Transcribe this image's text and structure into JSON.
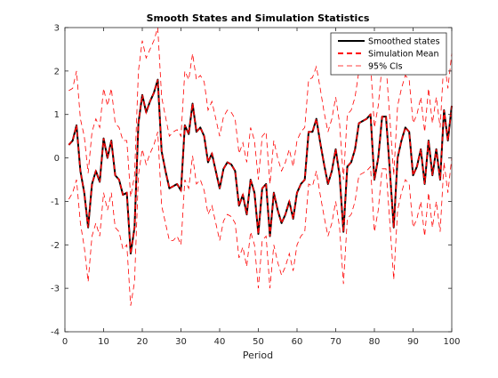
{
  "chart_data": {
    "type": "line",
    "title": "Smooth States and Simulation Statistics",
    "xlabel": "Period",
    "ylabel": "",
    "xlim": [
      0,
      100
    ],
    "ylim": [
      -4,
      3
    ],
    "xticks": [
      0,
      10,
      20,
      30,
      40,
      50,
      60,
      70,
      80,
      90,
      100
    ],
    "yticks": [
      -4,
      -3,
      -2,
      -1,
      0,
      1,
      2,
      3
    ],
    "grid": false,
    "legend": "top-right",
    "colors": {
      "smoothed": "#000000",
      "mean": "#ff0000",
      "ci": "#ff0000"
    },
    "x_start": 1,
    "smoothed_states": [
      0.3,
      0.4,
      0.75,
      -0.3,
      -0.8,
      -1.6,
      -0.6,
      -0.3,
      -0.55,
      0.45,
      0.0,
      0.4,
      -0.4,
      -0.5,
      -0.85,
      -0.8,
      -2.2,
      -1.6,
      0.8,
      1.45,
      1.05,
      1.3,
      1.5,
      1.8,
      0.15,
      -0.3,
      -0.7,
      -0.65,
      -0.6,
      -0.75,
      0.75,
      0.55,
      1.25,
      0.6,
      0.7,
      0.5,
      -0.1,
      0.1,
      -0.3,
      -0.7,
      -0.25,
      -0.1,
      -0.15,
      -0.3,
      -1.1,
      -0.85,
      -1.3,
      -0.5,
      -0.8,
      -1.75,
      -0.7,
      -0.6,
      -1.8,
      -0.8,
      -1.2,
      -1.5,
      -1.3,
      -1.0,
      -1.4,
      -0.8,
      -0.6,
      -0.5,
      0.6,
      0.6,
      0.9,
      0.35,
      -0.15,
      -0.6,
      -0.3,
      0.2,
      -0.4,
      -1.7,
      -0.2,
      -0.1,
      0.2,
      0.8,
      0.85,
      0.9,
      1.0,
      -0.5,
      0.0,
      0.95,
      0.95,
      -0.3,
      -1.6,
      0.0,
      0.4,
      0.7,
      0.6,
      -0.4,
      -0.2,
      0.2,
      -0.6,
      0.4,
      -0.4,
      0.2,
      -0.5,
      1.1,
      0.4,
      1.2
    ],
    "series": [
      {
        "name": "Smoothed states",
        "style": "solid",
        "values_key": "smoothed_states"
      },
      {
        "name": "Simulation Mean",
        "style": "dashed",
        "values": [
          0.3,
          0.4,
          0.75,
          -0.3,
          -0.8,
          -1.6,
          -0.6,
          -0.3,
          -0.55,
          0.45,
          0.0,
          0.4,
          -0.4,
          -0.5,
          -0.85,
          -0.8,
          -2.2,
          -1.6,
          0.8,
          1.45,
          1.05,
          1.3,
          1.5,
          1.8,
          0.15,
          -0.3,
          -0.7,
          -0.65,
          -0.6,
          -0.75,
          0.75,
          0.55,
          1.25,
          0.6,
          0.7,
          0.5,
          -0.1,
          0.1,
          -0.3,
          -0.7,
          -0.25,
          -0.1,
          -0.15,
          -0.3,
          -1.1,
          -0.85,
          -1.3,
          -0.5,
          -0.8,
          -1.75,
          -0.7,
          -0.6,
          -1.8,
          -0.8,
          -1.2,
          -1.5,
          -1.3,
          -1.0,
          -1.4,
          -0.8,
          -0.6,
          -0.5,
          0.6,
          0.6,
          0.9,
          0.35,
          -0.15,
          -0.6,
          -0.3,
          0.2,
          -0.4,
          -1.7,
          -0.2,
          -0.1,
          0.2,
          0.8,
          0.85,
          0.9,
          1.0,
          -0.5,
          0.0,
          0.95,
          0.95,
          -0.3,
          -1.6,
          0.0,
          0.4,
          0.7,
          0.6,
          -0.4,
          -0.2,
          0.2,
          -0.6,
          0.4,
          -0.4,
          0.2,
          -0.5,
          1.1,
          0.4,
          1.2
        ]
      },
      {
        "name": "95% CIs",
        "style": "dashed-thin",
        "upper": [
          1.55,
          1.6,
          2.0,
          0.9,
          0.5,
          -0.35,
          0.6,
          0.9,
          0.7,
          1.6,
          1.2,
          1.6,
          0.8,
          0.7,
          0.4,
          0.4,
          -0.9,
          -0.4,
          2.0,
          2.7,
          2.3,
          2.5,
          2.7,
          3.0,
          1.4,
          0.95,
          0.5,
          0.6,
          0.65,
          0.5,
          2.0,
          1.8,
          2.4,
          1.8,
          1.9,
          1.75,
          1.1,
          1.3,
          0.9,
          0.5,
          0.95,
          1.1,
          1.05,
          0.9,
          0.1,
          0.35,
          -0.1,
          0.7,
          0.4,
          -0.5,
          0.5,
          0.6,
          -0.6,
          0.4,
          0.0,
          -0.3,
          -0.1,
          0.2,
          -0.2,
          0.4,
          0.6,
          0.7,
          1.8,
          1.85,
          2.1,
          1.6,
          1.05,
          0.6,
          0.9,
          1.4,
          0.8,
          -0.5,
          1.0,
          1.1,
          1.4,
          2.0,
          2.05,
          2.1,
          2.2,
          0.7,
          1.2,
          2.15,
          2.15,
          0.9,
          -0.4,
          1.2,
          1.6,
          1.9,
          1.8,
          0.8,
          1.0,
          1.4,
          0.6,
          1.6,
          0.8,
          1.4,
          0.7,
          2.3,
          1.6,
          2.4
        ],
        "lower": [
          -0.95,
          -0.8,
          -0.5,
          -1.5,
          -2.05,
          -2.85,
          -1.8,
          -1.5,
          -1.8,
          -0.8,
          -1.2,
          -0.8,
          -1.6,
          -1.7,
          -2.1,
          -2.0,
          -3.4,
          -2.85,
          -0.4,
          0.2,
          -0.15,
          0.1,
          0.3,
          0.6,
          -1.1,
          -1.5,
          -1.9,
          -1.9,
          -1.8,
          -2.0,
          -0.5,
          -0.7,
          0.05,
          -0.6,
          -0.5,
          -0.75,
          -1.3,
          -1.1,
          -1.5,
          -1.9,
          -1.45,
          -1.3,
          -1.35,
          -1.5,
          -2.3,
          -2.05,
          -2.5,
          -1.7,
          -2.0,
          -3.0,
          -1.9,
          -1.8,
          -3.0,
          -2.0,
          -2.4,
          -2.7,
          -2.5,
          -2.2,
          -2.6,
          -2.0,
          -1.8,
          -1.7,
          -0.6,
          -0.65,
          -0.3,
          -0.85,
          -1.35,
          -1.8,
          -1.5,
          -1.0,
          -1.6,
          -2.9,
          -1.4,
          -1.3,
          -1.0,
          -0.4,
          -0.35,
          -0.3,
          -0.2,
          -1.7,
          -1.2,
          -0.25,
          -0.25,
          -1.5,
          -2.8,
          -1.2,
          -0.8,
          -0.5,
          -0.6,
          -1.6,
          -1.4,
          -1.0,
          -1.8,
          -0.8,
          -1.6,
          -1.0,
          -1.7,
          -0.1,
          -0.8,
          0.0
        ]
      }
    ]
  }
}
